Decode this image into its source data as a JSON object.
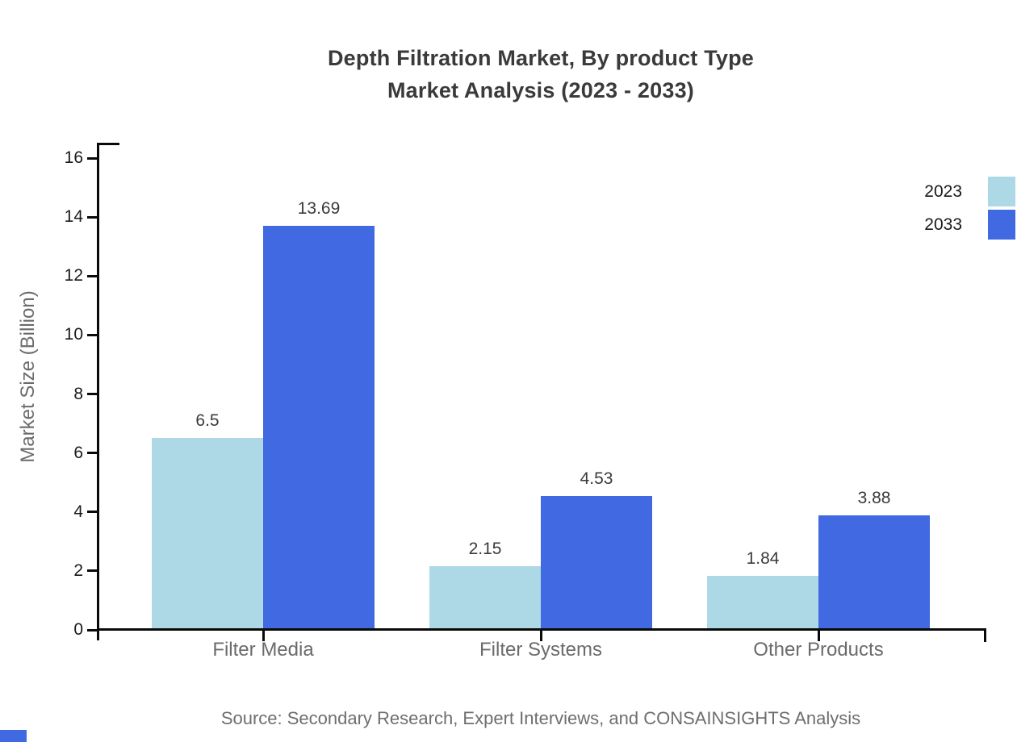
{
  "title": {
    "line1": "Depth Filtration Market, By product Type",
    "line2": "Market Analysis (2023 - 2033)"
  },
  "chart_data": {
    "type": "bar",
    "categories": [
      "Filter Media",
      "Filter Systems",
      "Other Products"
    ],
    "series": [
      {
        "name": "2023",
        "color": "#add8e6",
        "values": [
          6.5,
          2.15,
          1.84
        ]
      },
      {
        "name": "2033",
        "color": "#4169e1",
        "values": [
          13.69,
          4.53,
          3.88
        ]
      }
    ],
    "ylabel": "Market Size (Billion)",
    "xlabel": "",
    "ylim": [
      0,
      16
    ],
    "ytick_interval": 2,
    "ytick_labels": [
      "0",
      "2",
      "4",
      "6",
      "8",
      "10",
      "12",
      "14",
      "16"
    ],
    "grid": false,
    "legend_position": "top-right",
    "bar_value_labels": [
      "6.5",
      "13.69",
      "2.15",
      "4.53",
      "1.84",
      "3.88"
    ]
  },
  "legend": {
    "items": [
      {
        "label": "2023",
        "color": "#add8e6"
      },
      {
        "label": "2033",
        "color": "#4169e1"
      }
    ]
  },
  "footer": {
    "source": "Source: Secondary Research, Expert Interviews, and CONSAINSIGHTS Analysis"
  },
  "colors": {
    "series_2023": "#add8e6",
    "series_2033": "#4169e1",
    "axis": "#0a0a0a",
    "title_text": "#3a3a3a",
    "muted_text": "#6b6b6b",
    "value_text": "#3a3a3a",
    "corner_mark": "#4169e1",
    "background": "#ffffff"
  }
}
